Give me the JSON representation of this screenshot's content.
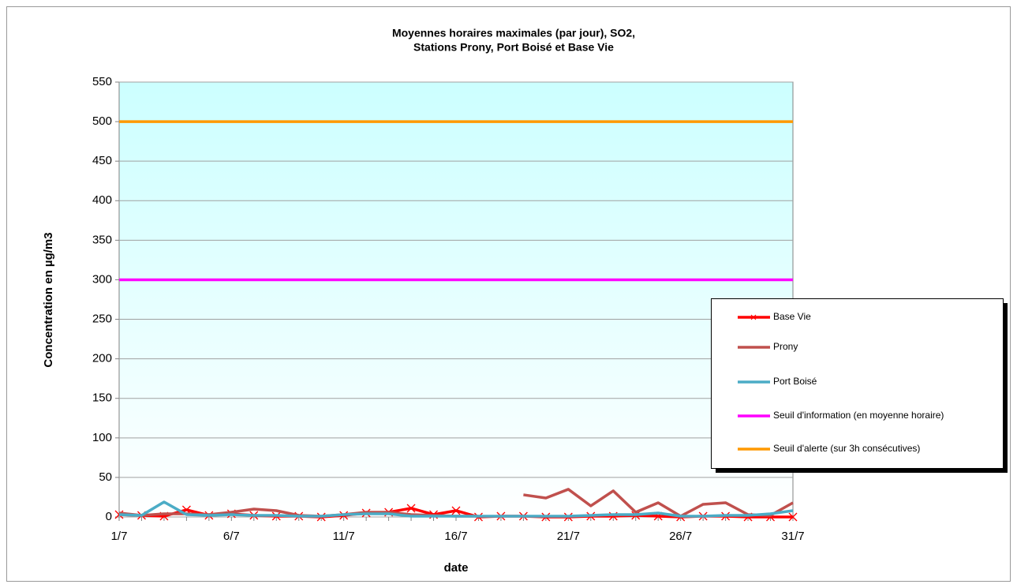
{
  "chart_data": {
    "type": "line",
    "title": [
      "Moyennes horaires maximales (par jour), SO2,",
      "Stations Prony, Port Boisé et Base Vie"
    ],
    "xlabel": "date",
    "ylabel": "Concentration en µg/m3",
    "categories": [
      "1/7",
      null,
      null,
      null,
      null,
      "6/7",
      null,
      null,
      null,
      null,
      "11/7",
      null,
      null,
      null,
      null,
      "16/7",
      null,
      null,
      null,
      null,
      "21/7",
      null,
      null,
      null,
      null,
      "26/7",
      null,
      null,
      null,
      null,
      "31/7"
    ],
    "ylim": [
      0,
      550
    ],
    "yticks": [
      0,
      50,
      100,
      150,
      200,
      250,
      300,
      350,
      400,
      450,
      500,
      550
    ],
    "grid": true,
    "legend": "right",
    "series": [
      {
        "name": "Base Vie",
        "color": "#ff0000",
        "marker": "x",
        "values": [
          3,
          2,
          1,
          9,
          2,
          4,
          2,
          1,
          1,
          0,
          2,
          5,
          6,
          11,
          3,
          8,
          0,
          1,
          1,
          0,
          0,
          1,
          1,
          2,
          1,
          0,
          1,
          1,
          0,
          0,
          0
        ]
      },
      {
        "name": "Prony",
        "color": "#c0504d",
        "values": [
          5,
          2,
          4,
          4,
          3,
          6,
          10,
          8,
          2,
          1,
          3,
          6,
          6,
          3,
          2,
          1,
          1,
          null,
          28,
          24,
          35,
          14,
          33,
          6,
          18,
          1,
          16,
          18,
          3,
          2,
          18
        ]
      },
      {
        "name": "Port Boisé",
        "color": "#4bacc6",
        "values": [
          3,
          2,
          19,
          3,
          2,
          3,
          2,
          2,
          1,
          1,
          3,
          4,
          4,
          1,
          1,
          1,
          1,
          1,
          1,
          1,
          1,
          2,
          3,
          3,
          5,
          1,
          1,
          2,
          2,
          4,
          8
        ]
      },
      {
        "name": "Seuil d'information (en moyenne horaire)",
        "color": "#ff00ff",
        "values": [
          300,
          300,
          300,
          300,
          300,
          300,
          300,
          300,
          300,
          300,
          300,
          300,
          300,
          300,
          300,
          300,
          300,
          300,
          300,
          300,
          300,
          300,
          300,
          300,
          300,
          300,
          300,
          300,
          300,
          300,
          300
        ]
      },
      {
        "name": "Seuil d'alerte (sur 3h consécutives)",
        "color": "#ff9900",
        "values": [
          500,
          500,
          500,
          500,
          500,
          500,
          500,
          500,
          500,
          500,
          500,
          500,
          500,
          500,
          500,
          500,
          500,
          500,
          500,
          500,
          500,
          500,
          500,
          500,
          500,
          500,
          500,
          500,
          500,
          500,
          500
        ]
      }
    ]
  }
}
